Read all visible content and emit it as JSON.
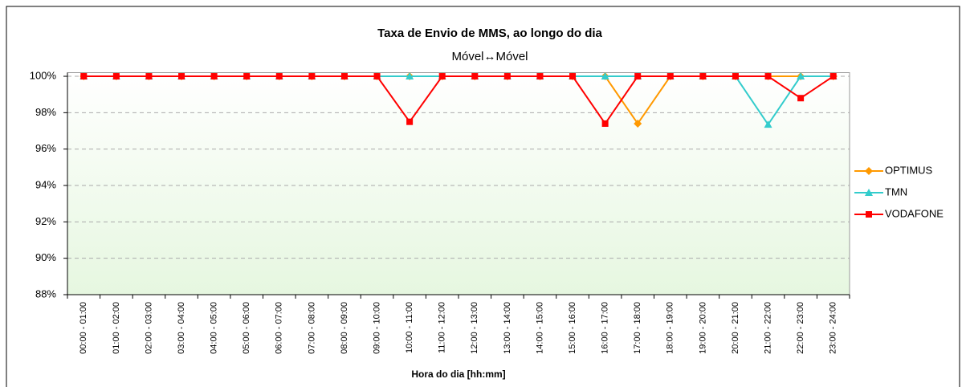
{
  "chart_data": {
    "type": "line",
    "title": "Taxa de Envio de MMS, ao longo do dia",
    "subtitle": "Móvel↔Móvel",
    "x_label": "Hora do dia [hh:mm]",
    "categories": [
      "00:00 - 01:00",
      "01:00 - 02:00",
      "02:00 - 03:00",
      "03:00 - 04:00",
      "04:00 - 05:00",
      "05:00 - 06:00",
      "06:00 - 07:00",
      "07:00 - 08:00",
      "08:00 - 09:00",
      "09:00 - 10:00",
      "10:00 - 11:00",
      "11:00 - 12:00",
      "12:00 - 13:00",
      "13:00 - 14:00",
      "14:00 - 15:00",
      "15:00 - 16:00",
      "16:00 - 17:00",
      "17:00 - 18:00",
      "18:00 - 19:00",
      "19:00 - 20:00",
      "20:00 - 21:00",
      "21:00 - 22:00",
      "22:00 - 23:00",
      "23:00 - 24:00"
    ],
    "series": [
      {
        "name": "OPTIMUS",
        "color": "#ff9900",
        "marker": "diamond",
        "values": [
          100,
          100,
          100,
          100,
          100,
          100,
          100,
          100,
          100,
          100,
          100,
          100,
          100,
          100,
          100,
          100,
          100,
          97.4,
          100,
          100,
          100,
          100,
          100,
          100
        ]
      },
      {
        "name": "TMN",
        "color": "#33cccc",
        "marker": "triangle",
        "values": [
          100,
          100,
          100,
          100,
          100,
          100,
          100,
          100,
          100,
          100,
          100,
          100,
          100,
          100,
          100,
          100,
          100,
          100,
          100,
          100,
          100,
          97.35,
          100,
          100
        ]
      },
      {
        "name": "VODAFONE",
        "color": "#ff0000",
        "marker": "square",
        "values": [
          100,
          100,
          100,
          100,
          100,
          100,
          100,
          100,
          100,
          100,
          97.5,
          100,
          100,
          100,
          100,
          100,
          97.4,
          100,
          100,
          100,
          100,
          100,
          98.8,
          100
        ]
      }
    ],
    "ylim": [
      88,
      100.2
    ],
    "yticks": [
      {
        "value": 88,
        "label": "88%"
      },
      {
        "value": 90,
        "label": "90%"
      },
      {
        "value": 92,
        "label": "92%"
      },
      {
        "value": 94,
        "label": "94%"
      },
      {
        "value": 96,
        "label": "96%"
      },
      {
        "value": 98,
        "label": "98%"
      },
      {
        "value": 100,
        "label": "100%"
      }
    ],
    "grid": true,
    "legend": "right"
  }
}
